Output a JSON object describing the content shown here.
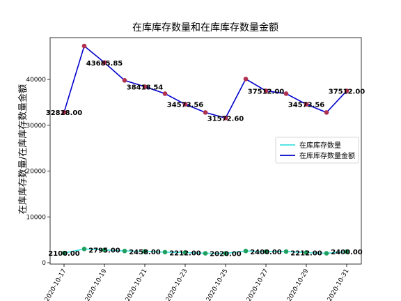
{
  "chart_data": {
    "type": "line",
    "title": "在库库存数量和在库库存数量金额",
    "xlabel": "",
    "ylabel": "在库库存数量/在库库存数量金额",
    "x": [
      "2020-10-17",
      "2020-10-18",
      "2020-10-19",
      "2020-10-20",
      "2020-10-21",
      "2020-10-22",
      "2020-10-23",
      "2020-10-24",
      "2020-10-25",
      "2020-10-26",
      "2020-10-27",
      "2020-10-28",
      "2020-10-29",
      "2020-10-30",
      "2020-10-31"
    ],
    "x_tick_labels": [
      "2020-10-17",
      "2020-10-19",
      "2020-10-21",
      "2020-10-23",
      "2020-10-25",
      "2020-10-27",
      "2020-10-29",
      "2020-10-31"
    ],
    "ylim": [
      0,
      50000
    ],
    "y_ticks": [
      "0",
      "10000",
      "20000",
      "30000",
      "40000"
    ],
    "grid": false,
    "legend_position": "right",
    "series": [
      {
        "name": "在库库存数量",
        "color": "#40e0e0",
        "marker_color": "#20a060",
        "values": [
          2100,
          3000,
          2795,
          2550,
          2458,
          2300,
          2212,
          2050,
          2020,
          2550,
          2400,
          2420,
          2212,
          2050,
          2400
        ]
      },
      {
        "name": "在库库存数量金额",
        "color": "#0000cd",
        "marker_color": "#b03050",
        "values": [
          32828,
          47300,
          43685.85,
          39800,
          38418.54,
          36900,
          34573.56,
          32800,
          31572.6,
          40100,
          37512,
          36900,
          34573.56,
          32800,
          37512
        ]
      }
    ],
    "data_labels": [
      {
        "series": 1,
        "index": 0,
        "text": "32828.00"
      },
      {
        "series": 1,
        "index": 2,
        "text": "43685.85"
      },
      {
        "series": 1,
        "index": 4,
        "text": "38418.54"
      },
      {
        "series": 1,
        "index": 6,
        "text": "34573.56"
      },
      {
        "series": 1,
        "index": 8,
        "text": "31572.60"
      },
      {
        "series": 1,
        "index": 10,
        "text": "37512.00"
      },
      {
        "series": 1,
        "index": 12,
        "text": "34573.56"
      },
      {
        "series": 1,
        "index": 14,
        "text": "37512.00"
      },
      {
        "series": 0,
        "index": 0,
        "text": "2100.00"
      },
      {
        "series": 0,
        "index": 2,
        "text": "2795.00"
      },
      {
        "series": 0,
        "index": 4,
        "text": "2458.00"
      },
      {
        "series": 0,
        "index": 6,
        "text": "2212.00"
      },
      {
        "series": 0,
        "index": 8,
        "text": "2020.00"
      },
      {
        "series": 0,
        "index": 10,
        "text": "2400.00"
      },
      {
        "series": 0,
        "index": 12,
        "text": "2212.00"
      },
      {
        "series": 0,
        "index": 14,
        "text": "2400.00"
      }
    ]
  }
}
